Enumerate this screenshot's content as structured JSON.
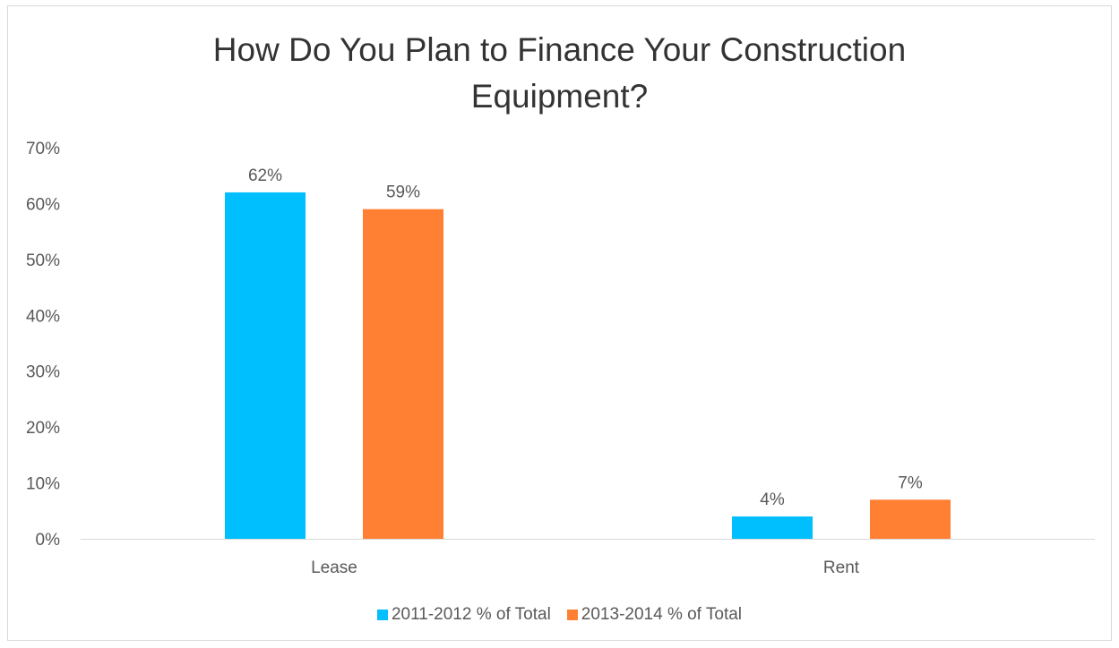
{
  "chart_data": {
    "type": "bar",
    "title": "How Do You Plan to Finance Your Construction Equipment?",
    "title_lines": [
      "How Do You Plan to Finance Your Construction",
      "Equipment?"
    ],
    "categories": [
      "Lease",
      "Rent"
    ],
    "series": [
      {
        "name": "2011-2012 % of Total",
        "values": [
          62,
          4
        ],
        "labels": [
          "62%",
          "4%"
        ],
        "color": "#00BFFF"
      },
      {
        "name": "2013-2014 % of Total",
        "values": [
          59,
          7
        ],
        "labels": [
          "59%",
          "7%"
        ],
        "color": "#FF8033"
      }
    ],
    "ylim": [
      0,
      70
    ],
    "yticks": [
      0,
      10,
      20,
      30,
      40,
      50,
      60,
      70
    ],
    "ytick_labels": [
      "0%",
      "10%",
      "20%",
      "30%",
      "40%",
      "50%",
      "60%",
      "70%"
    ],
    "xlabel": "",
    "ylabel": "",
    "grid": false,
    "legend_position": "bottom"
  }
}
